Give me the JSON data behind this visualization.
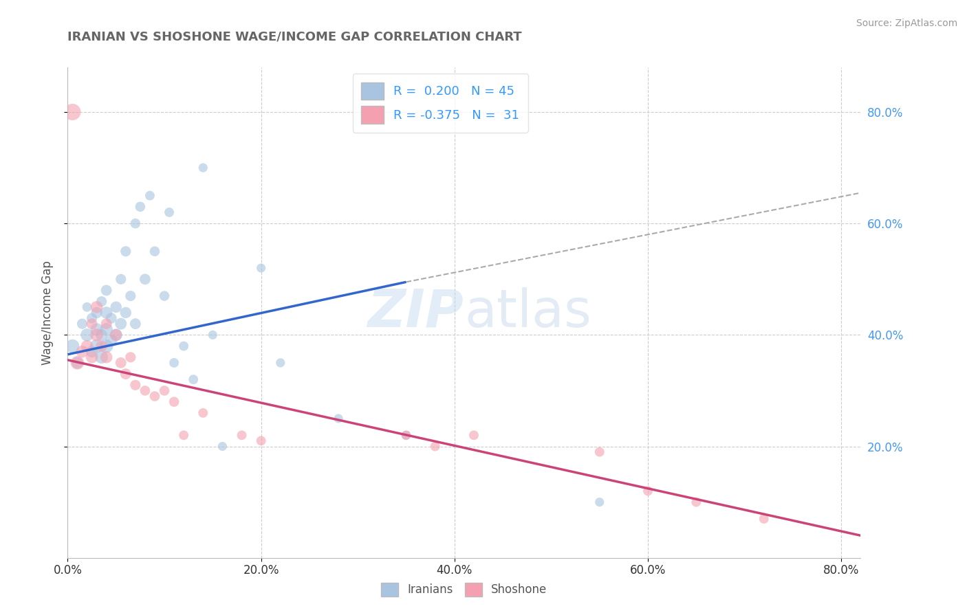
{
  "title": "IRANIAN VS SHOSHONE WAGE/INCOME GAP CORRELATION CHART",
  "source": "Source: ZipAtlas.com",
  "ylabel": "Wage/Income Gap",
  "xlim": [
    0.0,
    0.82
  ],
  "ylim": [
    0.0,
    0.88
  ],
  "x_tick_labels": [
    "0.0%",
    "20.0%",
    "40.0%",
    "60.0%",
    "80.0%"
  ],
  "x_tick_vals": [
    0.0,
    0.2,
    0.4,
    0.6,
    0.8
  ],
  "y_tick_labels": [
    "20.0%",
    "40.0%",
    "60.0%",
    "80.0%"
  ],
  "y_tick_vals": [
    0.2,
    0.4,
    0.6,
    0.8
  ],
  "grid_color": "#cccccc",
  "background_color": "#ffffff",
  "iranian_color": "#a8c4e0",
  "shoshone_color": "#f4a0b0",
  "iranian_line_color": "#3366cc",
  "shoshone_line_color": "#cc4477",
  "gray_dash_color": "#aaaaaa",
  "R_iranian": 0.2,
  "N_iranian": 45,
  "R_shoshone": -0.375,
  "N_shoshone": 31,
  "iranians_x": [
    0.005,
    0.01,
    0.015,
    0.02,
    0.02,
    0.025,
    0.025,
    0.03,
    0.03,
    0.03,
    0.035,
    0.035,
    0.035,
    0.04,
    0.04,
    0.04,
    0.04,
    0.045,
    0.045,
    0.05,
    0.05,
    0.055,
    0.055,
    0.06,
    0.06,
    0.065,
    0.07,
    0.07,
    0.075,
    0.08,
    0.085,
    0.09,
    0.1,
    0.105,
    0.11,
    0.12,
    0.13,
    0.14,
    0.15,
    0.16,
    0.2,
    0.22,
    0.28,
    0.35,
    0.55
  ],
  "iranians_y": [
    0.38,
    0.35,
    0.42,
    0.4,
    0.45,
    0.37,
    0.43,
    0.38,
    0.41,
    0.44,
    0.36,
    0.4,
    0.46,
    0.38,
    0.41,
    0.44,
    0.48,
    0.39,
    0.43,
    0.4,
    0.45,
    0.42,
    0.5,
    0.44,
    0.55,
    0.47,
    0.42,
    0.6,
    0.63,
    0.5,
    0.65,
    0.55,
    0.47,
    0.62,
    0.35,
    0.38,
    0.32,
    0.7,
    0.4,
    0.2,
    0.52,
    0.35,
    0.25,
    0.22,
    0.1
  ],
  "iranians_size": [
    200,
    150,
    120,
    180,
    100,
    150,
    120,
    200,
    170,
    140,
    180,
    150,
    120,
    200,
    180,
    160,
    130,
    160,
    130,
    170,
    140,
    150,
    120,
    140,
    120,
    120,
    130,
    110,
    110,
    130,
    100,
    110,
    110,
    100,
    100,
    100,
    100,
    90,
    90,
    90,
    90,
    90,
    90,
    90,
    90
  ],
  "shoshone_x": [
    0.005,
    0.01,
    0.015,
    0.02,
    0.025,
    0.025,
    0.03,
    0.03,
    0.035,
    0.04,
    0.04,
    0.05,
    0.055,
    0.06,
    0.065,
    0.07,
    0.08,
    0.09,
    0.1,
    0.11,
    0.12,
    0.14,
    0.18,
    0.2,
    0.35,
    0.38,
    0.42,
    0.55,
    0.6,
    0.65,
    0.72
  ],
  "shoshone_y": [
    0.8,
    0.35,
    0.37,
    0.38,
    0.36,
    0.42,
    0.4,
    0.45,
    0.38,
    0.36,
    0.42,
    0.4,
    0.35,
    0.33,
    0.36,
    0.31,
    0.3,
    0.29,
    0.3,
    0.28,
    0.22,
    0.26,
    0.22,
    0.21,
    0.22,
    0.2,
    0.22,
    0.19,
    0.12,
    0.1,
    0.07
  ],
  "shoshone_size": [
    300,
    200,
    160,
    160,
    160,
    130,
    180,
    160,
    140,
    160,
    130,
    150,
    130,
    130,
    120,
    120,
    110,
    110,
    110,
    110,
    100,
    100,
    100,
    100,
    100,
    100,
    100,
    100,
    100,
    100,
    100
  ],
  "iranian_trend_x0": 0.0,
  "iranian_trend_y0": 0.365,
  "iranian_trend_x1": 0.35,
  "iranian_trend_y1": 0.495,
  "iranian_trend_xdash_end": 0.82,
  "iranian_trend_ydash_end": 0.655,
  "shoshone_trend_x0": 0.0,
  "shoshone_trend_y0": 0.355,
  "shoshone_trend_x1": 0.82,
  "shoshone_trend_y1": 0.04
}
